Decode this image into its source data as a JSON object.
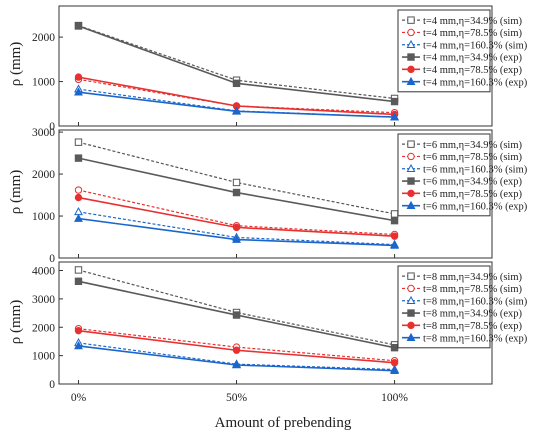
{
  "figure": {
    "xlabel": "Amount of prebending",
    "ylabel": "ρ (mm)"
  },
  "chart_data": [
    {
      "type": "line",
      "categories": [
        "0%",
        "50%",
        "100%"
      ],
      "xlabel": "",
      "ylabel": "ρ (mm)",
      "ylim": [
        0,
        2700
      ],
      "yticks": [
        0,
        1000,
        2000
      ],
      "grid": false,
      "legend_position": "top-right",
      "series": [
        {
          "name": "t=4 mm,η=34.9% (sim)",
          "values": [
            2260,
            1030,
            620
          ],
          "color": "#555555",
          "dash": true,
          "marker": "square-open"
        },
        {
          "name": "t=4 mm,η=78.5% (sim)",
          "values": [
            1050,
            450,
            300
          ],
          "color": "#e83030",
          "dash": true,
          "marker": "circle-open"
        },
        {
          "name": "t=4 mm,η=160.3% (sim)",
          "values": [
            830,
            340,
            200
          ],
          "color": "#1a66cc",
          "dash": true,
          "marker": "triangle-open"
        },
        {
          "name": "t=4 mm,η=34.9% (exp)",
          "values": [
            2250,
            960,
            550
          ],
          "color": "#5a5a5a",
          "dash": false,
          "marker": "square"
        },
        {
          "name": "t=4 mm,η=78.5% (exp)",
          "values": [
            1100,
            450,
            260
          ],
          "color": "#e83030",
          "dash": false,
          "marker": "circle"
        },
        {
          "name": "t=4 mm,η=160.3% (exp)",
          "values": [
            760,
            330,
            200
          ],
          "color": "#1a66cc",
          "dash": false,
          "marker": "triangle"
        }
      ]
    },
    {
      "type": "line",
      "categories": [
        "0%",
        "50%",
        "100%"
      ],
      "xlabel": "",
      "ylabel": "ρ (mm)",
      "ylim": [
        0,
        3050
      ],
      "yticks": [
        0,
        1000,
        2000,
        3000
      ],
      "grid": false,
      "legend_position": "top-right",
      "series": [
        {
          "name": "t=6 mm,η=34.9% (sim)",
          "values": [
            2760,
            1800,
            1050
          ],
          "color": "#555555",
          "dash": true,
          "marker": "square-open"
        },
        {
          "name": "t=6 mm,η=78.5% (sim)",
          "values": [
            1620,
            770,
            560
          ],
          "color": "#e83030",
          "dash": true,
          "marker": "circle-open"
        },
        {
          "name": "t=6 mm,η=160.3% (sim)",
          "values": [
            1100,
            490,
            320
          ],
          "color": "#1a66cc",
          "dash": true,
          "marker": "triangle-open"
        },
        {
          "name": "t=6 mm,η=34.9% (exp)",
          "values": [
            2380,
            1560,
            890
          ],
          "color": "#5a5a5a",
          "dash": false,
          "marker": "square"
        },
        {
          "name": "t=6 mm,η=78.5% (exp)",
          "values": [
            1440,
            730,
            520
          ],
          "color": "#e83030",
          "dash": false,
          "marker": "circle"
        },
        {
          "name": "t=6 mm,η=160.3% (exp)",
          "values": [
            940,
            440,
            300
          ],
          "color": "#1a66cc",
          "dash": false,
          "marker": "triangle"
        }
      ]
    },
    {
      "type": "line",
      "categories": [
        "0%",
        "50%",
        "100%"
      ],
      "xlabel": "Amount of prebending",
      "ylabel": "ρ (mm)",
      "ylim": [
        0,
        4300
      ],
      "yticks": [
        0,
        1000,
        2000,
        3000,
        4000
      ],
      "grid": false,
      "legend_position": "top-right",
      "series": [
        {
          "name": "t=8 mm,η=34.9% (sim)",
          "values": [
            4020,
            2520,
            1380
          ],
          "color": "#555555",
          "dash": true,
          "marker": "square-open"
        },
        {
          "name": "t=8 mm,η=78.5% (sim)",
          "values": [
            1950,
            1300,
            820
          ],
          "color": "#e83030",
          "dash": true,
          "marker": "circle-open"
        },
        {
          "name": "t=8 mm,η=160.3% (sim)",
          "values": [
            1450,
            700,
            510
          ],
          "color": "#1a66cc",
          "dash": true,
          "marker": "triangle-open"
        },
        {
          "name": "t=8 mm,η=34.9% (exp)",
          "values": [
            3620,
            2430,
            1280
          ],
          "color": "#5a5a5a",
          "dash": false,
          "marker": "square"
        },
        {
          "name": "t=8 mm,η=78.5% (exp)",
          "values": [
            1880,
            1190,
            750
          ],
          "color": "#e83030",
          "dash": false,
          "marker": "circle"
        },
        {
          "name": "t=8 mm,η=160.3% (exp)",
          "values": [
            1340,
            670,
            470
          ],
          "color": "#1a66cc",
          "dash": false,
          "marker": "triangle"
        }
      ]
    }
  ]
}
